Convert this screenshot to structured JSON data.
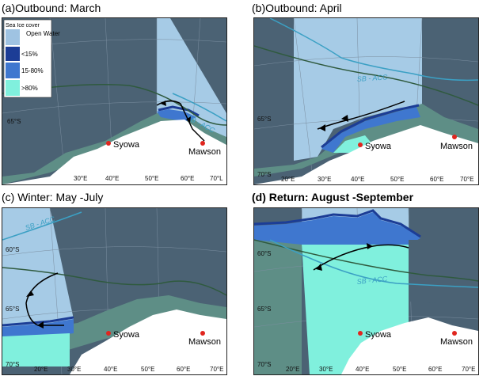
{
  "colors": {
    "dark_slate": "#4b6274",
    "sector_light": "#a6cbe6",
    "open_water": "#9fc3e2",
    "ice_lt15": "#1c3d96",
    "ice_15_80": "#3f77cf",
    "ice_gt80": "#80f0dd",
    "shelf_green": "#5e8e86",
    "land": "#ffffff",
    "acc_front": "#3ba0c4",
    "front_line": "#2f5a3e",
    "station": "#e0261f",
    "track": "#000000"
  },
  "legend": {
    "title": "Sea Ice cover",
    "items": [
      {
        "label": "Open Water",
        "color": "#9fc3e2"
      },
      {
        "label": "<15%",
        "color": "#1c3d96"
      },
      {
        "label": "15-80%",
        "color": "#3f77cf"
      },
      {
        "label": ">80%",
        "color": "#80f0dd"
      }
    ]
  },
  "stations": {
    "syowa": "Syowa",
    "mawson": "Mawson"
  },
  "front_label": "SB - ACC",
  "panels": [
    {
      "id": "a",
      "title": "(a)Outbound: March",
      "bold": false,
      "lon_labels": [
        "30°E",
        "40°E",
        "50°E",
        "60°E",
        "70°L"
      ],
      "lat_labels": [
        "65°S"
      ]
    },
    {
      "id": "b",
      "title": "(b)Outbound: April",
      "bold": false,
      "lon_labels": [
        "20°E",
        "30°E",
        "40°E",
        "50°E",
        "60°E",
        "70°E"
      ],
      "lat_labels": [
        "65°S",
        "70°S"
      ]
    },
    {
      "id": "c",
      "title": "(c) Winter: May -July",
      "bold": false,
      "lon_labels": [
        "20°E",
        "30°E",
        "40°E",
        "50°E",
        "60°E",
        "70°E"
      ],
      "lat_labels": [
        "60°S",
        "65°S",
        "70°S"
      ]
    },
    {
      "id": "d",
      "title": "(d) Return: August -September",
      "bold": true,
      "lon_labels": [
        "20°E",
        "30°E",
        "40°E",
        "50°E",
        "60°E",
        "70°E"
      ],
      "lat_labels": [
        "60°S",
        "65°S",
        "70°S"
      ]
    }
  ]
}
